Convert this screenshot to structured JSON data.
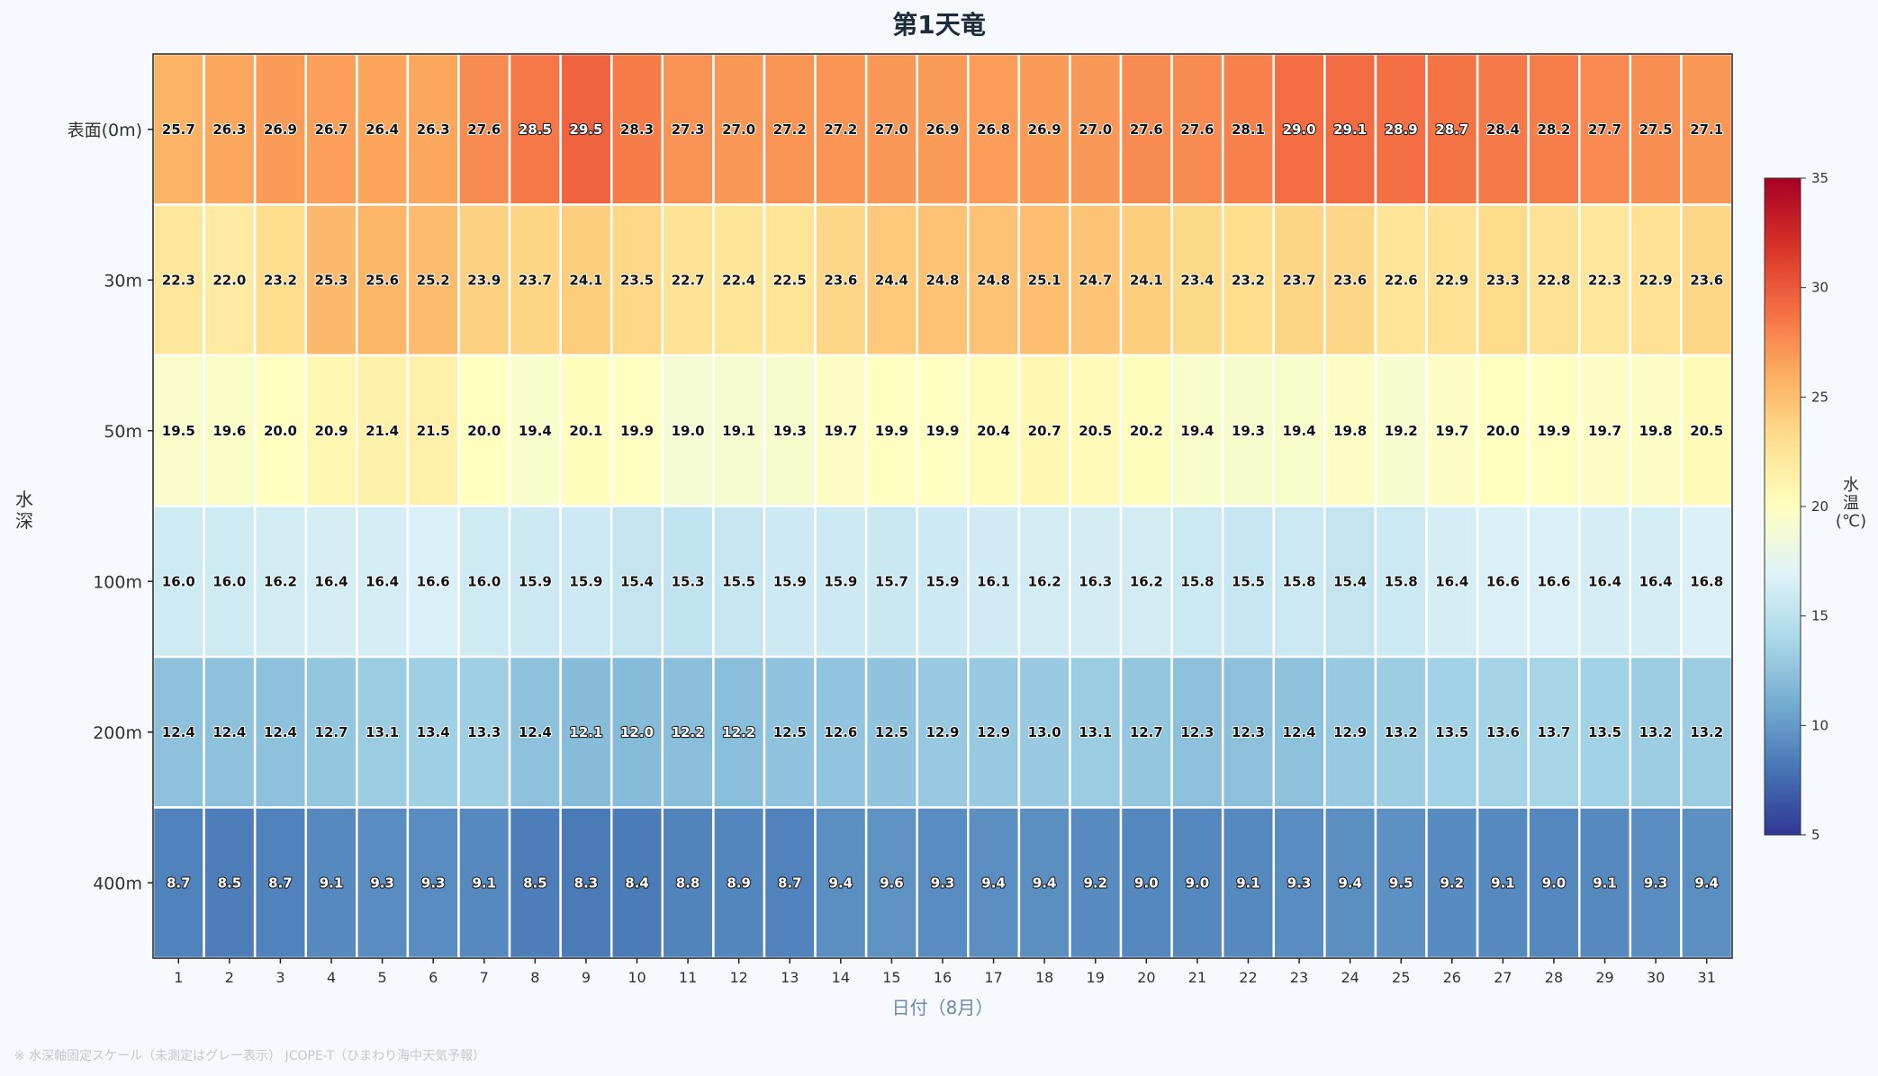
{
  "chart_data": {
    "type": "heatmap",
    "title": "第1天竜",
    "xlabel": "日付（8月）",
    "ylabel": "水深",
    "x_categories": [
      "1",
      "2",
      "3",
      "4",
      "5",
      "6",
      "7",
      "8",
      "9",
      "10",
      "11",
      "12",
      "13",
      "14",
      "15",
      "16",
      "17",
      "18",
      "19",
      "20",
      "21",
      "22",
      "23",
      "24",
      "25",
      "26",
      "27",
      "28",
      "29",
      "30",
      "31"
    ],
    "y_categories": [
      "表面(0m)",
      "30m",
      "50m",
      "100m",
      "200m",
      "400m"
    ],
    "values": [
      [
        25.7,
        26.3,
        26.9,
        26.7,
        26.4,
        26.3,
        27.6,
        28.5,
        29.5,
        28.3,
        27.3,
        27.0,
        27.2,
        27.2,
        27.0,
        26.9,
        26.8,
        26.9,
        27.0,
        27.6,
        27.6,
        28.1,
        29.0,
        29.1,
        28.9,
        28.7,
        28.4,
        28.2,
        27.7,
        27.5,
        27.1
      ],
      [
        22.3,
        22.0,
        23.2,
        25.3,
        25.6,
        25.2,
        23.9,
        23.7,
        24.1,
        23.5,
        22.7,
        22.4,
        22.5,
        23.6,
        24.4,
        24.8,
        24.8,
        25.1,
        24.7,
        24.1,
        23.4,
        23.2,
        23.7,
        23.6,
        22.6,
        22.9,
        23.3,
        22.8,
        22.3,
        22.9,
        23.6
      ],
      [
        19.5,
        19.6,
        20.0,
        20.9,
        21.4,
        21.5,
        20.0,
        19.4,
        20.1,
        19.9,
        19.0,
        19.1,
        19.3,
        19.7,
        19.9,
        19.9,
        20.4,
        20.7,
        20.5,
        20.2,
        19.4,
        19.3,
        19.4,
        19.8,
        19.2,
        19.7,
        20.0,
        19.9,
        19.7,
        19.8,
        20.5
      ],
      [
        16.0,
        16.0,
        16.2,
        16.4,
        16.4,
        16.6,
        16.0,
        15.9,
        15.9,
        15.4,
        15.3,
        15.5,
        15.9,
        15.9,
        15.7,
        15.9,
        16.1,
        16.2,
        16.3,
        16.2,
        15.8,
        15.5,
        15.8,
        15.4,
        15.8,
        16.4,
        16.6,
        16.6,
        16.4,
        16.4,
        16.8
      ],
      [
        12.4,
        12.4,
        12.4,
        12.7,
        13.1,
        13.4,
        13.3,
        12.4,
        12.1,
        12.0,
        12.2,
        12.2,
        12.5,
        12.6,
        12.5,
        12.9,
        12.9,
        13.0,
        13.1,
        12.7,
        12.3,
        12.3,
        12.4,
        12.9,
        13.2,
        13.5,
        13.6,
        13.7,
        13.5,
        13.2,
        13.2
      ],
      [
        8.7,
        8.5,
        8.7,
        9.1,
        9.3,
        9.3,
        9.1,
        8.5,
        8.3,
        8.4,
        8.8,
        8.9,
        8.7,
        9.4,
        9.6,
        9.3,
        9.4,
        9.4,
        9.2,
        9.0,
        9.0,
        9.1,
        9.3,
        9.4,
        9.5,
        9.2,
        9.1,
        9.0,
        9.1,
        9.3,
        9.4
      ]
    ],
    "colorbar": {
      "label": "水温(℃)",
      "vmin": 5,
      "vmax": 35,
      "ticks": [
        "5",
        "10",
        "15",
        "20",
        "25",
        "30",
        "35"
      ],
      "colormap": "RdYlBu_r"
    },
    "footnote": "※ 水深軸固定スケール（未測定はグレー表示） JCOPE-T（ひまわり海中天気予報）"
  }
}
